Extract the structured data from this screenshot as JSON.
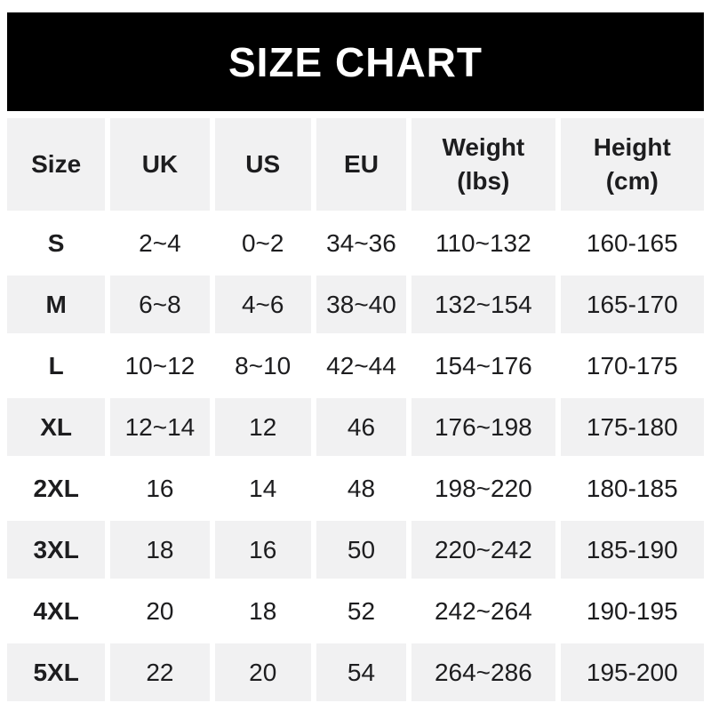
{
  "banner": {
    "title": "SIZE CHART"
  },
  "colors": {
    "banner_bg": "#000000",
    "banner_text": "#ffffff",
    "stripe_gray": "#f1f1f2",
    "stripe_white": "#ffffff",
    "text": "#1d1d1f",
    "page_bg": "#ffffff"
  },
  "chart_data": {
    "type": "table",
    "title": "SIZE CHART",
    "columns": [
      "Size",
      "UK",
      "US",
      "EU",
      "Weight\n(lbs)",
      "Height\n(cm)"
    ],
    "rows": [
      [
        "S",
        "2~4",
        "0~2",
        "34~36",
        "110~132",
        "160-165"
      ],
      [
        "M",
        "6~8",
        "4~6",
        "38~40",
        "132~154",
        "165-170"
      ],
      [
        "L",
        "10~12",
        "8~10",
        "42~44",
        "154~176",
        "170-175"
      ],
      [
        "XL",
        "12~14",
        "12",
        "46",
        "176~198",
        "175-180"
      ],
      [
        "2XL",
        "16",
        "14",
        "48",
        "198~220",
        "180-185"
      ],
      [
        "3XL",
        "18",
        "16",
        "50",
        "220~242",
        "185-190"
      ],
      [
        "4XL",
        "20",
        "18",
        "52",
        "242~264",
        "190-195"
      ],
      [
        "5XL",
        "22",
        "20",
        "54",
        "264~286",
        "195-200"
      ]
    ],
    "layout": {
      "striping": "header gray, then rows alternate white/gray starting white",
      "cell_gaps": "white gutters ~6px horizontal, ~4px vertical",
      "grid": "off"
    }
  }
}
